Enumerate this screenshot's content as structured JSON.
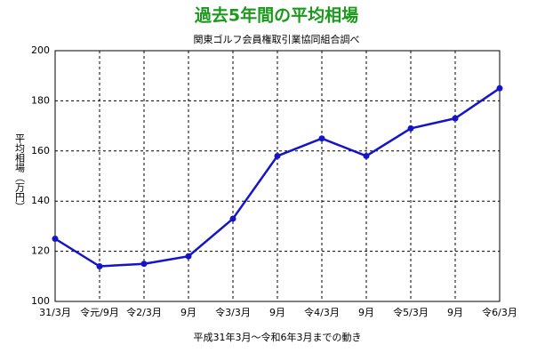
{
  "chart_data": {
    "type": "line",
    "title": "過去5年間の平均相場",
    "subtitle": "関東ゴルフ会員権取引業協同組合調べ",
    "y_label": "平均相場（万円）",
    "x_label": "平成31年3月～令和6年3月までの動き",
    "categories": [
      "31/3月",
      "令元/9月",
      "令2/3月",
      "9月",
      "令3/3月",
      "9月",
      "令4/3月",
      "9月",
      "令5/3月",
      "9月",
      "令6/3月"
    ],
    "values": [
      125,
      114,
      115,
      118,
      133,
      158,
      165,
      158,
      169,
      173,
      185
    ],
    "color": "#1414c8",
    "ylim": [
      100,
      200
    ],
    "yticks": [
      100,
      120,
      140,
      160,
      180,
      200
    ],
    "grid": true
  }
}
